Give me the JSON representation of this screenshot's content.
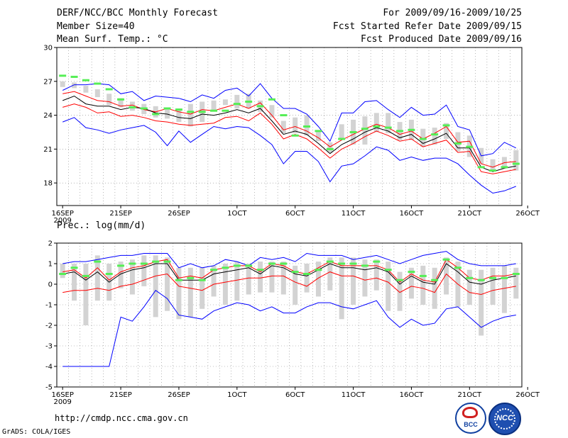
{
  "header": {
    "title": "DERF/NCC/BCC Monthly Forecast",
    "member_size": "Member Size=40",
    "variable1": "Mean Surf. Temp.: °C",
    "period": "For 2009/09/16-2009/10/25",
    "started": "Fcst Started Refer Date 2009/09/15",
    "produced": "Fcst Produced Date 2009/09/16"
  },
  "footer": {
    "url": "http://cmdp.ncc.cma.gov.cn",
    "grads": "GrADS: COLA/IGES",
    "logo1": "BCC",
    "logo2": "NCC"
  },
  "colors": {
    "max_min": "#0000ff",
    "quartile": "#ff0000",
    "mean": "#000000",
    "bar": "#d3d3d3",
    "dash": "#55ee55"
  },
  "chart_data": [
    {
      "type": "line",
      "title": "Mean Surf. Temp.: °C",
      "x_tick_labels": [
        "16SEP",
        "21SEP",
        "26SEP",
        "1OCT",
        "6OCT",
        "11OCT",
        "16OCT",
        "21OCT",
        "26OCT"
      ],
      "year_label": "2009",
      "ylim": [
        16,
        30
      ],
      "yticks": [
        18,
        21,
        24,
        27,
        30
      ],
      "days": 40,
      "series": [
        {
          "name": "max",
          "values": [
            26.2,
            26.7,
            26.7,
            26.8,
            26.7,
            25.9,
            26.1,
            25.3,
            25.7,
            25.6,
            25.5,
            25.2,
            25.8,
            25.5,
            26.2,
            26.4,
            25.7,
            26.8,
            25.5,
            24.6,
            24.6,
            24.1,
            23.0,
            21.7,
            24.2,
            24.2,
            25.2,
            25.3,
            24.5,
            23.8,
            24.7,
            24.0,
            24.1,
            24.9,
            23.0,
            22.7,
            20.4,
            20.6,
            21.6,
            21.1
          ]
        },
        {
          "name": "q75",
          "values": [
            25.9,
            26.1,
            25.7,
            25.3,
            25.2,
            24.8,
            24.9,
            24.5,
            24.3,
            24.6,
            24.3,
            24.1,
            24.5,
            24.4,
            24.7,
            25.0,
            24.6,
            25.1,
            24.0,
            22.7,
            23.0,
            22.6,
            22.0,
            21.2,
            21.8,
            22.3,
            22.8,
            23.2,
            22.9,
            22.3,
            22.6,
            21.9,
            22.4,
            23.0,
            21.6,
            21.7,
            19.7,
            19.4,
            19.8,
            19.9
          ]
        },
        {
          "name": "mean",
          "values": [
            25.3,
            25.7,
            25.0,
            24.8,
            24.8,
            24.5,
            24.7,
            24.6,
            24.2,
            24.1,
            23.8,
            23.7,
            24.1,
            24.0,
            24.2,
            24.5,
            24.2,
            24.6,
            23.5,
            22.3,
            22.6,
            22.3,
            21.5,
            20.6,
            21.4,
            21.9,
            22.5,
            22.9,
            22.6,
            22.0,
            22.3,
            21.5,
            21.9,
            22.4,
            21.1,
            21.1,
            19.4,
            19.0,
            19.3,
            19.5
          ]
        },
        {
          "name": "q25",
          "values": [
            24.7,
            25.0,
            24.7,
            24.2,
            24.3,
            23.9,
            24.0,
            23.8,
            23.5,
            23.4,
            23.2,
            23.1,
            23.2,
            23.3,
            23.8,
            23.9,
            23.5,
            24.2,
            23.2,
            21.9,
            22.3,
            21.9,
            21.1,
            20.2,
            21.0,
            21.5,
            22.1,
            22.6,
            22.2,
            21.7,
            21.9,
            21.2,
            21.5,
            21.8,
            20.7,
            20.8,
            19.0,
            18.8,
            19.0,
            19.2
          ]
        },
        {
          "name": "min",
          "values": [
            23.4,
            23.8,
            22.9,
            22.7,
            22.4,
            22.7,
            22.9,
            23.1,
            22.5,
            21.3,
            22.6,
            21.6,
            22.3,
            23.0,
            22.8,
            23.0,
            22.9,
            22.2,
            21.4,
            19.7,
            20.8,
            20.8,
            19.9,
            18.1,
            19.5,
            19.7,
            20.4,
            21.2,
            20.9,
            20.0,
            20.3,
            20.0,
            20.2,
            20.2,
            19.7,
            18.7,
            17.8,
            17.1,
            17.3,
            17.7
          ]
        }
      ],
      "ensemble_high": [
        27.0,
        26.9,
        26.6,
        26.3,
        25.9,
        25.5,
        25.2,
        25.0,
        24.8,
        24.6,
        24.6,
        25.0,
        25.2,
        25.3,
        25.4,
        25.8,
        25.9,
        25.3,
        24.9,
        23.5,
        23.8,
        24.0,
        22.6,
        21.6,
        23.2,
        23.6,
        23.9,
        24.2,
        24.2,
        23.4,
        23.6,
        22.8,
        22.9,
        23.3,
        22.5,
        22.2,
        21.1,
        20.1,
        20.3,
        20.9
      ],
      "ensemble_low": [
        26.5,
        26.4,
        26.0,
        25.6,
        24.9,
        24.7,
        24.4,
        24.1,
        23.8,
        23.7,
        23.4,
        23.0,
        23.4,
        24.4,
        24.9,
        24.6,
        24.6,
        24.3,
        23.8,
        22.4,
        22.4,
        22.2,
        21.7,
        20.7,
        21.8,
        21.4,
        21.4,
        22.5,
        22.4,
        21.8,
        21.8,
        21.2,
        21.4,
        21.9,
        20.8,
        20.3,
        19.7,
        19.0,
        19.3,
        19.1
      ],
      "observed": [
        27.5,
        27.4,
        27.1,
        26.8,
        26.3,
        25.4,
        24.7,
        24.6,
        24.1,
        24.6,
        24.5,
        24.3,
        24.3,
        24.4,
        24.4,
        25.0,
        25.2,
        24.8,
        25.4,
        24.0,
        22.2,
        23.0,
        22.6,
        21.0,
        21.9,
        22.5,
        22.8,
        23.0,
        22.9,
        22.6,
        22.7,
        21.9,
        22.3,
        23.1,
        21.5,
        21.2,
        19.4,
        19.1,
        19.4,
        19.7
      ]
    },
    {
      "type": "line",
      "title": "Prec.: log(mm/d)",
      "x_tick_labels": [
        "16SEP",
        "21SEP",
        "26SEP",
        "1OCT",
        "6OCT",
        "11OCT",
        "16OCT",
        "21OCT",
        "26OCT"
      ],
      "year_label": "2009",
      "ylim": [
        -5,
        2
      ],
      "yticks": [
        -5,
        -4,
        -3,
        -2,
        -1,
        0,
        1,
        2
      ],
      "days": 40,
      "series": [
        {
          "name": "max",
          "values": [
            1.0,
            1.1,
            1.1,
            1.2,
            1.3,
            1.4,
            1.4,
            1.5,
            1.5,
            1.5,
            0.8,
            1.0,
            0.8,
            0.9,
            1.2,
            1.1,
            0.9,
            1.3,
            1.2,
            1.3,
            1.1,
            1.5,
            1.4,
            1.4,
            1.4,
            1.2,
            1.3,
            1.4,
            1.2,
            1.0,
            1.2,
            1.4,
            1.5,
            1.6,
            1.2,
            1.0,
            0.9,
            0.9,
            0.9,
            1.0
          ]
        },
        {
          "name": "q75",
          "values": [
            0.6,
            0.7,
            0.3,
            0.8,
            0.2,
            0.6,
            0.8,
            0.9,
            1.1,
            1.2,
            0.3,
            0.4,
            0.3,
            0.7,
            0.8,
            0.9,
            0.9,
            0.6,
            1.0,
            0.9,
            0.6,
            0.5,
            0.8,
            1.1,
            0.9,
            0.9,
            0.9,
            0.9,
            0.7,
            0.1,
            0.5,
            0.2,
            0.1,
            1.2,
            0.8,
            0.3,
            0.2,
            0.4,
            0.4,
            0.5
          ]
        },
        {
          "name": "mean",
          "values": [
            0.5,
            0.6,
            0.2,
            0.6,
            0.1,
            0.5,
            0.7,
            0.8,
            1.0,
            1.0,
            0.2,
            0.2,
            0.2,
            0.5,
            0.6,
            0.7,
            0.8,
            0.5,
            0.9,
            0.8,
            0.5,
            0.4,
            0.7,
            1.0,
            0.8,
            0.8,
            0.7,
            0.8,
            0.6,
            0.0,
            0.4,
            0.1,
            0.0,
            1.0,
            0.6,
            0.1,
            0.0,
            0.2,
            0.3,
            0.4
          ]
        },
        {
          "name": "q25",
          "values": [
            -0.4,
            -0.3,
            -0.3,
            -0.2,
            -0.3,
            -0.1,
            0.0,
            0.2,
            0.4,
            0.5,
            -0.1,
            -0.2,
            -0.3,
            0.0,
            0.1,
            0.2,
            0.3,
            0.3,
            0.4,
            0.4,
            0.1,
            -0.1,
            0.3,
            0.6,
            0.4,
            0.4,
            0.2,
            0.3,
            0.1,
            -0.4,
            -0.1,
            -0.2,
            -0.4,
            0.5,
            0.0,
            -0.4,
            -0.5,
            -0.3,
            -0.2,
            -0.1
          ]
        },
        {
          "name": "min",
          "values": [
            -4.0,
            -4.0,
            -4.0,
            -4.0,
            -4.0,
            -1.6,
            -1.8,
            -1.1,
            -0.3,
            -0.7,
            -1.5,
            -1.6,
            -1.7,
            -1.3,
            -1.1,
            -0.9,
            -1.0,
            -1.3,
            -1.1,
            -1.4,
            -1.4,
            -1.1,
            -0.9,
            -0.9,
            -1.1,
            -1.2,
            -1.0,
            -0.8,
            -1.6,
            -2.1,
            -1.7,
            -2.0,
            -1.9,
            -1.2,
            -1.1,
            -1.6,
            -2.1,
            -1.8,
            -1.6,
            -1.5
          ]
        }
      ],
      "ensemble_high": [
        1.0,
        1.0,
        1.0,
        1.4,
        1.0,
        1.1,
        1.2,
        1.4,
        1.4,
        1.3,
        0.8,
        0.8,
        0.8,
        0.9,
        1.0,
        1.1,
        1.0,
        1.1,
        1.1,
        1.1,
        0.9,
        1.0,
        1.1,
        1.3,
        1.3,
        1.3,
        1.2,
        1.2,
        1.1,
        0.6,
        0.8,
        0.9,
        0.8,
        1.3,
        1.1,
        0.7,
        0.7,
        0.8,
        0.9,
        0.8
      ],
      "ensemble_low": [
        0.3,
        -0.8,
        -2.0,
        -0.8,
        -0.8,
        -0.2,
        -0.5,
        -0.1,
        -1.6,
        -1.3,
        -1.7,
        -1.6,
        -1.2,
        -0.6,
        -1.0,
        -0.8,
        -0.5,
        -0.4,
        -0.4,
        -0.5,
        -1.0,
        -0.4,
        -0.6,
        -0.3,
        -1.7,
        -1.0,
        -0.6,
        -0.3,
        -1.3,
        -1.3,
        -0.7,
        -1.0,
        -1.2,
        -0.5,
        -1.1,
        -1.0,
        -2.5,
        -1.0,
        -1.4,
        -0.7
      ],
      "observed": [
        0.5,
        0.8,
        0.4,
        1.1,
        0.5,
        0.9,
        1.0,
        1.0,
        1.1,
        1.1,
        0.2,
        0.3,
        0.2,
        0.7,
        0.8,
        0.9,
        0.9,
        0.7,
        1.0,
        1.0,
        0.6,
        0.5,
        0.7,
        1.1,
        1.0,
        1.0,
        0.9,
        1.1,
        0.7,
        0.2,
        0.6,
        0.4,
        0.2,
        1.2,
        0.8,
        0.3,
        0.2,
        0.3,
        0.3,
        0.5
      ]
    }
  ]
}
